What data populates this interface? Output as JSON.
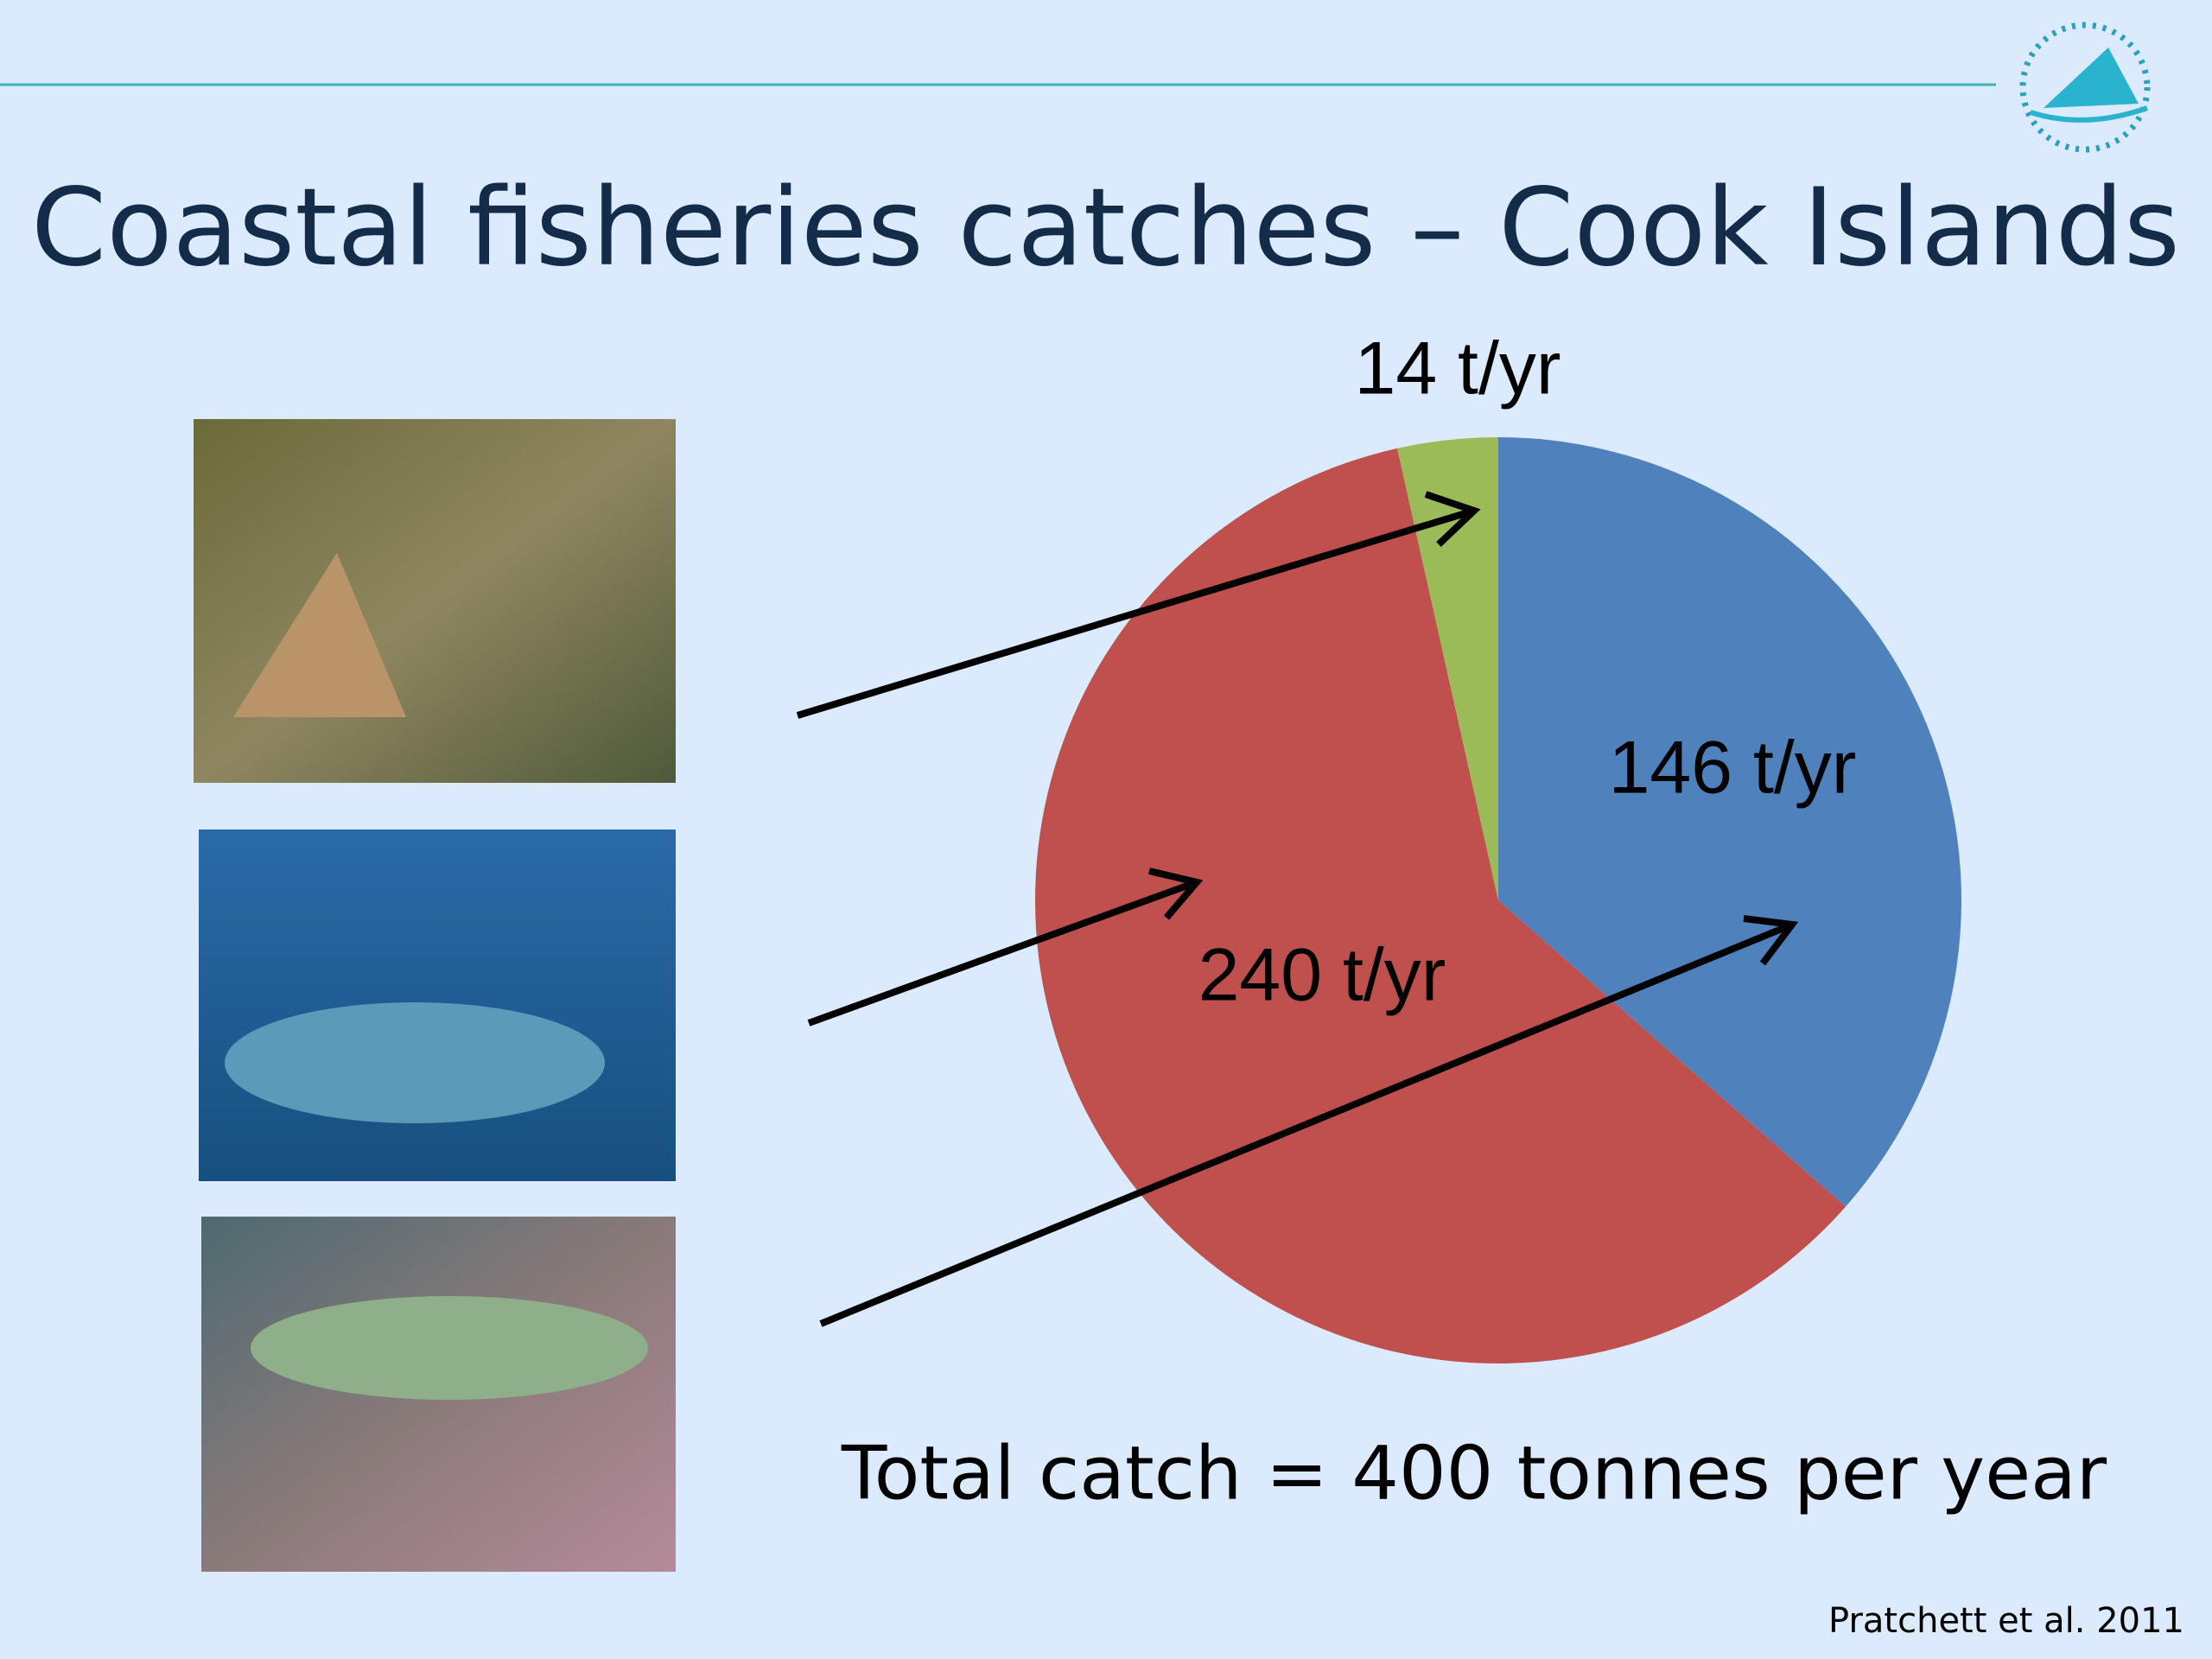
{
  "chart_data": {
    "type": "pie",
    "title": "Coastal fisheries catches – Cook Islands",
    "values": [
      146,
      240,
      14
    ],
    "value_labels": [
      "146 t/yr",
      "240 t/yr",
      "14 t/yr"
    ],
    "colors": [
      "#4f81bd",
      "#c0504d",
      "#9bbb59"
    ],
    "annotation": "Total catch = 400 tonnes per year",
    "source": "Pratchett et al. 2011"
  }
}
